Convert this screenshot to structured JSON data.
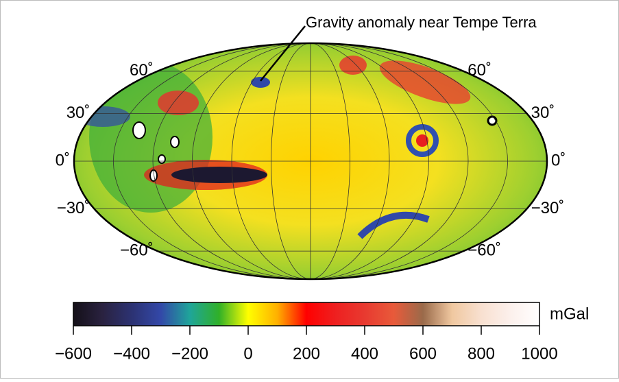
{
  "map": {
    "annotation": "Gravity anomaly near Tempe Terra",
    "latitude_labels": [
      {
        "value": 60,
        "label": "60˚"
      },
      {
        "value": 30,
        "label": "30˚"
      },
      {
        "value": 0,
        "label": "0˚"
      },
      {
        "value": -30,
        "label": "−30˚"
      },
      {
        "value": -60,
        "label": "−60˚"
      }
    ],
    "colorbar": {
      "unit": "mGal",
      "lim": [
        -600,
        1000
      ],
      "ticks": [
        {
          "value": -600,
          "label": "−600"
        },
        {
          "value": -400,
          "label": "−400"
        },
        {
          "value": -200,
          "label": "−200"
        },
        0,
        200,
        400,
        600,
        800,
        1000
      ],
      "colors": [
        "#141018",
        "#2a2240",
        "#2c3272",
        "#3348a8",
        "#1fa59a",
        "#30b028",
        "#ffff00",
        "#ffb000",
        "#ff0000",
        "#ee2020",
        "#e83a30",
        "#e85a3a",
        "#9a6a4a",
        "#f0c8a0",
        "#f8e0d0",
        "#fcf0ec",
        "#ffffff"
      ]
    }
  }
}
